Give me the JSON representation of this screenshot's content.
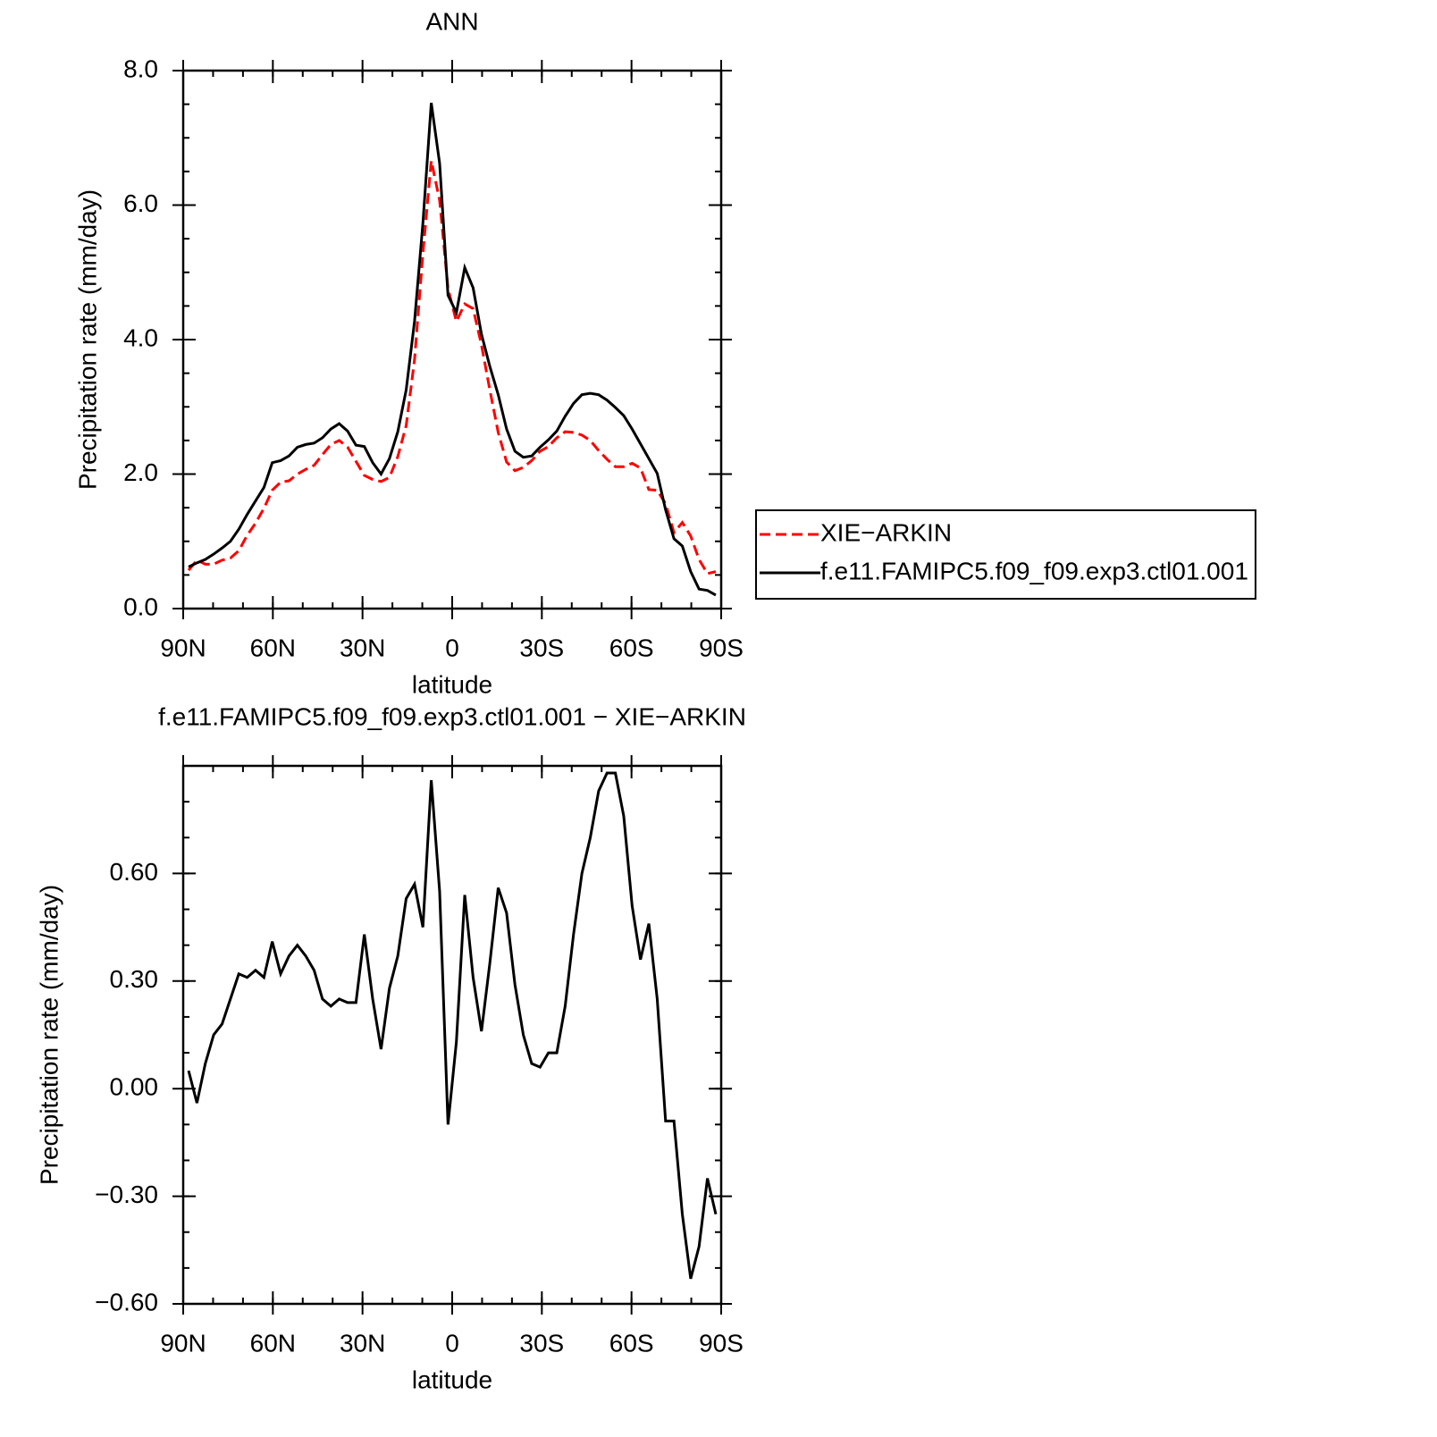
{
  "chart_data": [
    {
      "type": "line",
      "title": "ANN",
      "xlabel": "latitude",
      "ylabel": "Precipitation rate (mm/day)",
      "xlim": [
        90,
        -90
      ],
      "xticks": [
        {
          "value": 90,
          "label": "90N"
        },
        {
          "value": 60,
          "label": "60N"
        },
        {
          "value": 30,
          "label": "30N"
        },
        0,
        {
          "value": -30,
          "label": "30S"
        },
        {
          "value": -60,
          "label": "60S"
        },
        {
          "value": -90,
          "label": "90S"
        }
      ],
      "ylim": [
        0,
        8
      ],
      "yticks": [
        {
          "value": 0,
          "label": "0.0"
        },
        {
          "value": 2,
          "label": "2.0"
        },
        {
          "value": 4,
          "label": "4.0"
        },
        {
          "value": 6,
          "label": "6.0"
        },
        {
          "value": 8,
          "label": "8.0"
        }
      ],
      "legend": "right",
      "x": [
        88.2,
        85.4,
        82.6,
        79.8,
        77,
        74.2,
        71.4,
        68.6,
        65.8,
        63,
        60.2,
        57.4,
        54.6,
        51.8,
        49,
        46.2,
        43.4,
        40.6,
        37.8,
        35,
        32.2,
        29.4,
        26.6,
        23.8,
        21,
        18.2,
        15.4,
        12.6,
        9.8,
        7,
        4.2,
        1.4,
        -1.4,
        -4.2,
        -7,
        -9.8,
        -12.6,
        -15.4,
        -18.2,
        -21,
        -23.8,
        -26.6,
        -29.4,
        -32.2,
        -35,
        -37.8,
        -40.6,
        -43.4,
        -46.2,
        -49,
        -51.8,
        -54.6,
        -57.4,
        -60.2,
        -63,
        -65.8,
        -68.6,
        -71.4,
        -74.2,
        -77,
        -79.8,
        -82.6,
        -85.4,
        -88.2
      ],
      "series": [
        {
          "name": "XIE−ARKIN",
          "color": "#ff0000",
          "line_style": "dashed",
          "values": [
            0.57,
            0.72,
            0.66,
            0.66,
            0.72,
            0.75,
            0.86,
            1.09,
            1.27,
            1.49,
            1.76,
            1.88,
            1.9,
            2.0,
            2.07,
            2.13,
            2.29,
            2.44,
            2.5,
            2.4,
            2.19,
            1.98,
            1.92,
            1.89,
            1.95,
            2.26,
            2.72,
            3.7,
            5.28,
            6.66,
            6.07,
            4.76,
            4.27,
            4.53,
            4.46,
            3.92,
            3.25,
            2.62,
            2.18,
            2.05,
            2.1,
            2.2,
            2.34,
            2.41,
            2.54,
            2.63,
            2.62,
            2.58,
            2.5,
            2.35,
            2.22,
            2.11,
            2.11,
            2.16,
            2.09,
            1.77,
            1.76,
            1.56,
            1.13,
            1.28,
            1.08,
            0.73,
            0.52,
            0.55
          ]
        },
        {
          "name": "f.e11.FAMIPC5.f09_f09.exp3.ctl01.001",
          "color": "#000000",
          "line_style": "solid",
          "values": [
            0.62,
            0.68,
            0.73,
            0.81,
            0.9,
            1.0,
            1.18,
            1.4,
            1.6,
            1.8,
            2.17,
            2.2,
            2.27,
            2.4,
            2.44,
            2.46,
            2.54,
            2.67,
            2.75,
            2.64,
            2.43,
            2.41,
            2.17,
            2.0,
            2.23,
            2.63,
            3.25,
            4.27,
            5.73,
            7.52,
            6.62,
            4.66,
            4.4,
            5.07,
            4.77,
            4.08,
            3.6,
            3.18,
            2.67,
            2.34,
            2.25,
            2.27,
            2.4,
            2.51,
            2.64,
            2.86,
            3.05,
            3.18,
            3.2,
            3.18,
            3.1,
            2.99,
            2.87,
            2.67,
            2.45,
            2.23,
            2.01,
            1.47,
            1.04,
            0.93,
            0.55,
            0.29,
            0.27,
            0.2
          ]
        }
      ]
    },
    {
      "type": "line",
      "title": "f.e11.FAMIPC5.f09_f09.exp3.ctl01.001 − XIE−ARKIN",
      "xlabel": "latitude",
      "ylabel": "Precipitation rate (mm/day)",
      "xlim": [
        90,
        -90
      ],
      "xticks": [
        {
          "value": 90,
          "label": "90N"
        },
        {
          "value": 60,
          "label": "60N"
        },
        {
          "value": 30,
          "label": "30N"
        },
        0,
        {
          "value": -30,
          "label": "30S"
        },
        {
          "value": -60,
          "label": "60S"
        },
        {
          "value": -90,
          "label": "90S"
        }
      ],
      "ylim": [
        -0.6,
        0.9
      ],
      "yticks": [
        {
          "value": -0.6,
          "label": "−0.60"
        },
        {
          "value": -0.3,
          "label": "−0.30"
        },
        {
          "value": 0,
          "label": "0.00"
        },
        {
          "value": 0.3,
          "label": "0.30"
        },
        {
          "value": 0.6,
          "label": "0.60"
        }
      ],
      "color": "#000000",
      "x": [
        88.2,
        85.4,
        82.6,
        79.8,
        77,
        74.2,
        71.4,
        68.6,
        65.8,
        63,
        60.2,
        57.4,
        54.6,
        51.8,
        49,
        46.2,
        43.4,
        40.6,
        37.8,
        35,
        32.2,
        29.4,
        26.6,
        23.8,
        21,
        18.2,
        15.4,
        12.6,
        9.8,
        7,
        4.2,
        1.4,
        -1.4,
        -4.2,
        -7,
        -9.8,
        -12.6,
        -15.4,
        -18.2,
        -21,
        -23.8,
        -26.6,
        -29.4,
        -32.2,
        -35,
        -37.8,
        -40.6,
        -43.4,
        -46.2,
        -49,
        -51.8,
        -54.6,
        -57.4,
        -60.2,
        -63,
        -65.8,
        -68.6,
        -71.4,
        -74.2,
        -77,
        -79.8,
        -82.6,
        -85.4,
        -88.2
      ],
      "values": [
        0.05,
        -0.04,
        0.07,
        0.15,
        0.18,
        0.25,
        0.32,
        0.31,
        0.33,
        0.31,
        0.41,
        0.32,
        0.37,
        0.4,
        0.37,
        0.33,
        0.25,
        0.23,
        0.25,
        0.24,
        0.24,
        0.43,
        0.25,
        0.11,
        0.28,
        0.37,
        0.53,
        0.57,
        0.45,
        0.86,
        0.55,
        -0.1,
        0.13,
        0.54,
        0.31,
        0.16,
        0.35,
        0.56,
        0.49,
        0.29,
        0.15,
        0.07,
        0.06,
        0.1,
        0.1,
        0.23,
        0.43,
        0.6,
        0.7,
        0.83,
        0.88,
        0.88,
        0.76,
        0.51,
        0.36,
        0.46,
        0.25,
        -0.09,
        -0.09,
        -0.35,
        -0.53,
        -0.44,
        -0.25,
        -0.35
      ]
    }
  ]
}
